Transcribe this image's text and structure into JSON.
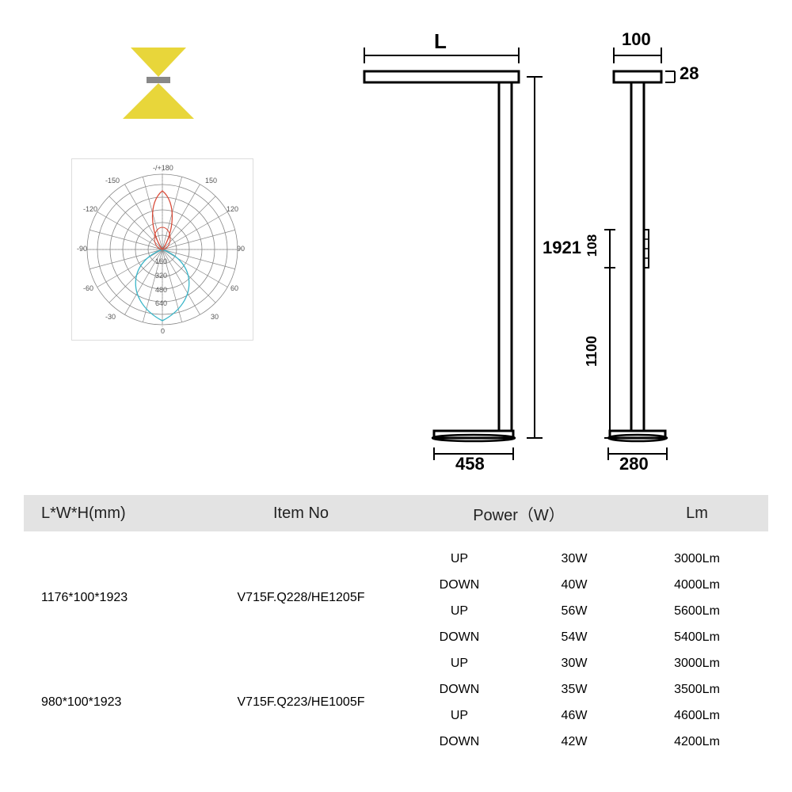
{
  "light_icon": {
    "top_triangle_color": "#e8d63a",
    "bottom_triangle_color": "#e8d63a",
    "bar_color": "#aaaaaa"
  },
  "polar": {
    "angle_labels": [
      "-/+180",
      "-150",
      "150",
      "-120",
      "120",
      "-90",
      "90",
      "-60",
      "60",
      "-30",
      "30",
      "0"
    ],
    "ring_labels": [
      "160",
      "320",
      "480",
      "640"
    ],
    "grid_color": "#888888",
    "curve1_color": "#d94c3a",
    "curve2_color": "#3ab6c9",
    "bg": "#ffffff"
  },
  "front": {
    "label_L": "L",
    "height": "1921",
    "base": "458"
  },
  "side": {
    "top_width": "100",
    "top_thick": "28",
    "switch_h": "108",
    "switch_pos": "1100",
    "base": "280"
  },
  "table": {
    "headers": {
      "dim": "L*W*H(mm)",
      "item": "Item No",
      "power": "Power（W）",
      "lm": "Lm"
    },
    "groups": [
      {
        "dim": "1176*100*1923",
        "item": "V715F.Q228/HE1205F",
        "rows": [
          {
            "dir": "UP",
            "power": "30W",
            "lm": "3000Lm"
          },
          {
            "dir": "DOWN",
            "power": "40W",
            "lm": "4000Lm"
          },
          {
            "dir": "UP",
            "power": "56W",
            "lm": "5600Lm"
          },
          {
            "dir": "DOWN",
            "power": "54W",
            "lm": "5400Lm"
          }
        ]
      },
      {
        "dim": "980*100*1923",
        "item": "V715F.Q223/HE1005F",
        "rows": [
          {
            "dir": "UP",
            "power": "30W",
            "lm": "3000Lm"
          },
          {
            "dir": "DOWN",
            "power": "35W",
            "lm": "3500Lm"
          },
          {
            "dir": "UP",
            "power": "46W",
            "lm": "4600Lm"
          },
          {
            "dir": "DOWN",
            "power": "42W",
            "lm": "4200Lm"
          }
        ]
      }
    ]
  },
  "colors": {
    "header_bg": "#e3e3e3",
    "text": "#222222",
    "line": "#000000"
  }
}
